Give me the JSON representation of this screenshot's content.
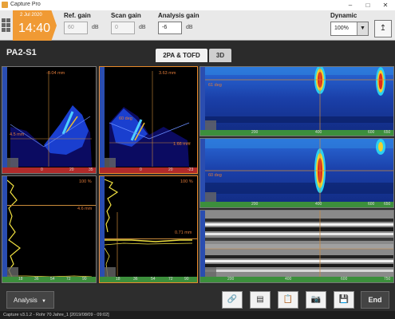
{
  "window": {
    "title": "Capture Pro"
  },
  "clock": {
    "date": "2 Jul 2020",
    "time": "14:40"
  },
  "gains": {
    "ref": {
      "label": "Ref. gain",
      "value": "60",
      "unit": "dB"
    },
    "scan": {
      "label": "Scan gain",
      "value": "0",
      "unit": "dB"
    },
    "analysis": {
      "label": "Analysis gain",
      "value": "-6",
      "unit": "dB"
    }
  },
  "dynamic": {
    "label": "Dynamic",
    "value": "100%"
  },
  "channel": "PA2-S1",
  "tabs": [
    {
      "label": "2PA & TOFD"
    },
    {
      "label": "3D"
    }
  ],
  "sscan1": {
    "label_top": "-0.04 mm",
    "label_left": "4.5 mm",
    "ticks": [
      "0",
      "20",
      "35"
    ]
  },
  "sscan2": {
    "label_top": "3.63 mm",
    "label_mid": "60 deg",
    "label_right": "1.66 mm",
    "ticks": [
      "0",
      "20",
      "-23"
    ]
  },
  "cscan1": {
    "label_gate": "61 deg",
    "ticks": [
      "200",
      "400",
      "600",
      "650"
    ]
  },
  "cscan2": {
    "label_gate": "60 deg",
    "ticks": [
      "200",
      "400",
      "600",
      "650"
    ]
  },
  "ascan1": {
    "label_pct": "100 %",
    "label_depth": "4.6 mm",
    "ticks": [
      "18",
      "36",
      "54",
      "72",
      "90"
    ]
  },
  "ascan2": {
    "label_pct": "100 %",
    "label_depth": "0.71 mm",
    "ticks": [
      "18",
      "36",
      "54",
      "72",
      "90"
    ]
  },
  "tofd": {
    "ticks": [
      "200",
      "400",
      "600",
      "750"
    ]
  },
  "bottom": {
    "analysis_label": "Analysis",
    "end_label": "End"
  },
  "status": "Capture v3.1.2 - Rohr 70 Jahre_1 [2019/08/09 - 09:02]",
  "colors": {
    "accent": "#f09a34",
    "selected": "#e88a2b",
    "cscan_bg": "#1a3fa8"
  }
}
